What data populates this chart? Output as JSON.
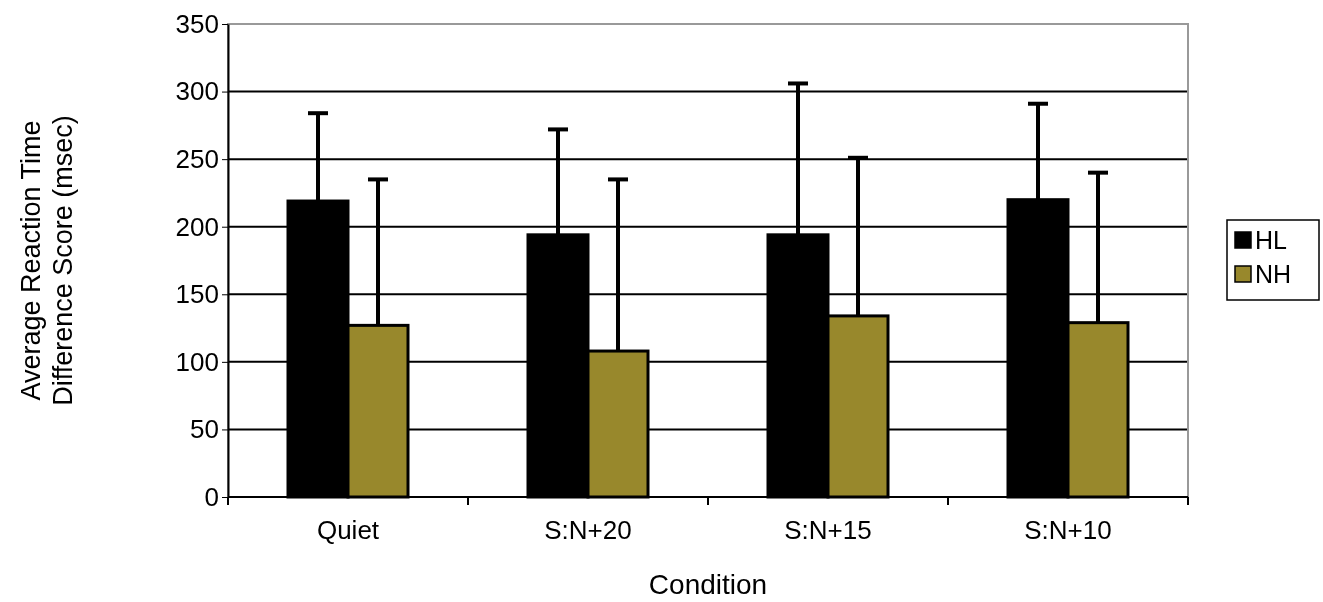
{
  "chart_data": {
    "type": "bar",
    "xlabel": "Condition",
    "ylabel": "Average Reaction Time Difference Score (msec)",
    "categories": [
      "Quiet",
      "S:N+20",
      "S:N+15",
      "S:N+10"
    ],
    "series": [
      {
        "name": "HL",
        "color": "#000000",
        "values": [
          219,
          194,
          194,
          220
        ],
        "errors": [
          [
            219,
            284
          ],
          [
            194,
            272
          ],
          [
            194,
            306
          ],
          [
            220,
            291
          ]
        ]
      },
      {
        "name": "NH",
        "color": "#98882c",
        "values": [
          127,
          108,
          134,
          129
        ],
        "errors": [
          [
            127,
            235
          ],
          [
            108,
            235
          ],
          [
            134,
            251
          ],
          [
            129,
            240
          ]
        ]
      }
    ],
    "ylim": [
      0,
      350
    ],
    "yticks": [
      0,
      50,
      100,
      150,
      200,
      250,
      300,
      350
    ],
    "grid": "y",
    "legend": "right"
  }
}
